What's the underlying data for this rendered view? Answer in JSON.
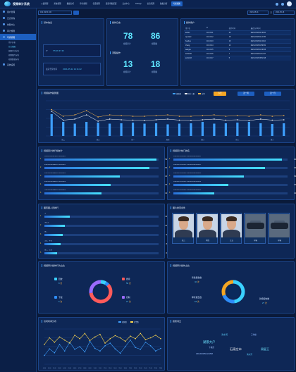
{
  "app": {
    "title": "视频审计系统"
  },
  "topnav": [
    "入侵管理",
    "系统管理",
    "数据分析",
    "审计规则",
    "告警管理",
    "运营审批配置",
    "日志中心",
    "CS/App",
    "信息管理",
    "数据分析",
    "可视视图"
  ],
  "topnav_active": 10,
  "sidebar": [
    {
      "label": "用户管理",
      "active": false
    },
    {
      "label": "日志查询",
      "active": false
    },
    {
      "label": "告警中心",
      "active": false
    },
    {
      "label": "审计规则",
      "active": false
    },
    {
      "label": "可视视图",
      "active": true
    },
    {
      "label": "系统设置",
      "active": false
    }
  ],
  "sidebar_sub": [
    {
      "label": "用户分析",
      "active": false
    },
    {
      "label": "综合视图",
      "active": true
    },
    {
      "label": "视频审计分析",
      "active": false
    },
    {
      "label": "视频图片分析",
      "active": false
    },
    {
      "label": "视频数据分析",
      "active": false
    }
  ],
  "filter": {
    "search_value": "192.168.0.100",
    "date_start": "2021-05-01",
    "date_end": "2021-05-18",
    "sep": "至"
  },
  "basic_info": {
    "title": "基本信息",
    "ip_label": "IP",
    "ip_value": "55.26.37.32",
    "time_label": "最后登录时间",
    "time_value": "2021-05-12 14:11:22"
  },
  "ops_log": {
    "title": "操作日志",
    "n1": "78",
    "n1_label": "视频审计",
    "n2": "86",
    "n2_label": "视图播",
    "sub_title": "流程操作",
    "n3": "13",
    "n3_label": "视频审计",
    "n4": "18",
    "n4_label": "视图播"
  },
  "online_users": {
    "title": "操作用户",
    "headers": [
      "用户名",
      "IP",
      "操作时间",
      "最近访问时间"
    ],
    "rows": [
      [
        "admin",
        "10.0.0.11",
        "24",
        "2021-05-18 11:30:02"
      ],
      [
        "operator",
        "10.0.0.12",
        "18",
        "2021-05-18 11:22:45"
      ],
      [
        "huahua",
        "10.0.0.13",
        "16",
        "2021-05-18 11:04:10"
      ],
      [
        "zhang",
        "10.0.0.14",
        "12",
        "2021-05-18 10:58:31"
      ],
      [
        "wangxu",
        "10.0.0.15",
        "9",
        "2021-05-18 10:40:06"
      ],
      [
        "admin02",
        "10.0.0.16",
        "7",
        "2021-05-18 10:12:27"
      ],
      [
        "admin03",
        "10.0.0.17",
        "5",
        "2021-05-18 09:52:18"
      ]
    ]
  },
  "trend": {
    "title": "视频操作趋势图",
    "legend": [
      "视频数",
      "审计人数",
      "告警"
    ],
    "btn_today": "今天",
    "btn_week": "近一周",
    "btn_month": "近一月"
  },
  "chart_data": [
    {
      "type": "bar",
      "categories": [
        "周一",
        "周二",
        "周三",
        "周四",
        "周五",
        "周六",
        "周日",
        "周一",
        "周二",
        "周三",
        "周四",
        "周五",
        "周六",
        "周日",
        "周一",
        "周二",
        "周三",
        "周四",
        "周五",
        "周六",
        "周日"
      ],
      "series": [
        {
          "name": "视频数",
          "values": [
            62,
            40,
            35,
            40,
            38,
            35,
            36,
            38,
            35,
            36,
            33,
            35,
            36,
            40,
            35,
            36,
            38,
            40,
            36,
            34,
            36
          ]
        },
        {
          "name": "审计人数",
          "values": [
            70,
            45,
            48,
            60,
            42,
            48,
            46,
            45,
            44,
            46,
            48,
            45,
            44,
            46,
            48,
            45,
            46,
            44,
            48,
            45,
            46
          ]
        },
        {
          "name": "告警",
          "values": [
            75,
            56,
            60,
            72,
            54,
            60,
            58,
            56,
            56,
            58,
            60,
            56,
            56,
            58,
            60,
            56,
            58,
            56,
            60,
            56,
            58
          ]
        }
      ],
      "ylim": [
        0,
        100
      ]
    },
    {
      "type": "line",
      "categories": [
        "00:00",
        "01:00",
        "02:00",
        "03:00",
        "04:00",
        "05:00",
        "06:00",
        "07:00",
        "08:00",
        "09:00",
        "10:00",
        "11:00",
        "12:00",
        "13:00",
        "14:00",
        "15:00",
        "16:00",
        "17:00",
        "18:00",
        "19:00",
        "20:00",
        "21:00",
        "22:00",
        "23:00"
      ],
      "series": [
        {
          "name": "视频数",
          "values": [
            20,
            35,
            26,
            45,
            30,
            50,
            34,
            40,
            28,
            52,
            36,
            30,
            42,
            48,
            35,
            25,
            40,
            55,
            38,
            34,
            50,
            42,
            30,
            36
          ]
        },
        {
          "name": "告警数",
          "values": [
            45,
            60,
            50,
            62,
            55,
            48,
            66,
            58,
            70,
            54,
            62,
            68,
            48,
            58,
            65,
            60,
            52,
            64,
            58,
            70,
            56,
            60,
            66,
            58
          ]
        }
      ],
      "ylim": [
        0,
        80
      ]
    }
  ],
  "video_rank": {
    "title": "视频审计排行榜前十",
    "rows": [
      {
        "label": "3H0SGUR01BJH1P-00000001",
        "value": 59,
        "pct": 0.98
      },
      {
        "label": "4000SGUR0BBH1P-00000002",
        "value": 56,
        "pct": 0.92
      },
      {
        "label": "5000SGUR0BBH1P-00000003",
        "value": 40,
        "pct": 0.66
      },
      {
        "label": "6000SGUR0BBH1P-00000004",
        "value": 36,
        "pct": 0.58
      },
      {
        "label": "7000SGUR0BBH1P-00000005",
        "value": 32,
        "pct": 0.5
      }
    ]
  },
  "video_hot": {
    "title": "视频审计热门排名",
    "rows": [
      {
        "label": "3000000702BJH1P-0000000000000001",
        "value": 82,
        "pct": 0.95
      },
      {
        "label": "3000000702BJH1P-0000000000000002",
        "value": 64,
        "pct": 0.8
      },
      {
        "label": "3000000702BJH1P-0000000000000003",
        "value": 54,
        "pct": 0.62
      },
      {
        "label": "3000000702BJH1P-0000000000000004",
        "value": 40,
        "pct": 0.48
      },
      {
        "label": "3000000702BJH1P-0000000000000005",
        "value": 32,
        "pct": 0.36
      }
    ]
  },
  "image_rank": {
    "title": "图查图人员排行",
    "rows": [
      {
        "label": "王",
        "value": 12,
        "pct": 0.22
      },
      {
        "label": "李先生",
        "value": 10,
        "pct": 0.18
      },
      {
        "label": "张三",
        "value": 9,
        "pct": 0.16
      },
      {
        "label": "王五、李四",
        "value": 8,
        "pct": 0.14
      },
      {
        "label": "张三、王四",
        "value": 6,
        "pct": 0.11
      }
    ]
  },
  "image_records": {
    "title": "图片搜索条件",
    "items": [
      {
        "name": "张三",
        "kind": "face"
      },
      {
        "name": "李四",
        "kind": "face"
      },
      {
        "name": "王五",
        "kind": "face"
      },
      {
        "name": "车辆",
        "kind": "car"
      },
      {
        "name": "车辆",
        "kind": "car"
      }
    ]
  },
  "audit_types": {
    "title": "视频审计操作行为占比",
    "items": [
      {
        "label": "回放",
        "value": "8",
        "unit": "次",
        "color": "#3ad1ff"
      },
      {
        "label": "下载",
        "value": "5",
        "unit": "次",
        "color": "#2e8dfa"
      },
      {
        "label": "搜索",
        "value": "59",
        "unit": "次",
        "color": "#ff5a5a"
      },
      {
        "label": "控制",
        "value": "27",
        "unit": "次",
        "color": "#9b6bff"
      }
    ],
    "chart": [
      8,
      5,
      59,
      27
    ]
  },
  "alarm_types": {
    "title": "视频审计操作占比",
    "items": [
      {
        "label": "查看报告数",
        "value": "42",
        "unit": "次"
      },
      {
        "label": "审查报告数",
        "value": "18",
        "unit": "次"
      },
      {
        "label": "新增报告数",
        "value": "27",
        "unit": "次"
      }
    ],
    "chart": [
      42,
      18,
      27
    ]
  },
  "time_chart": {
    "title": "访问时间分布",
    "legend": [
      "视频数",
      "告警数"
    ]
  },
  "words": {
    "title": "搜索词云",
    "list": [
      {
        "text": "清水河",
        "size": 3,
        "color": "#5fd3ff"
      },
      {
        "text": "工作楼",
        "size": 2.6,
        "color": "#8fb7ff"
      },
      {
        "text": "湖景大户",
        "size": 4.4,
        "color": "#6fe3ff"
      },
      {
        "text": "下城营",
        "size": 2.6,
        "color": "#a7c7ff"
      },
      {
        "text": "石家庄市",
        "size": 4.2,
        "color": "#ffffff"
      },
      {
        "text": "周星王",
        "size": 4,
        "color": "#6fe3ff"
      },
      {
        "text": "430120196512214568",
        "size": 2.4,
        "color": "#9fc2ff"
      },
      {
        "text": "清水河",
        "size": 2.6,
        "color": "#5fd3ff"
      }
    ]
  }
}
